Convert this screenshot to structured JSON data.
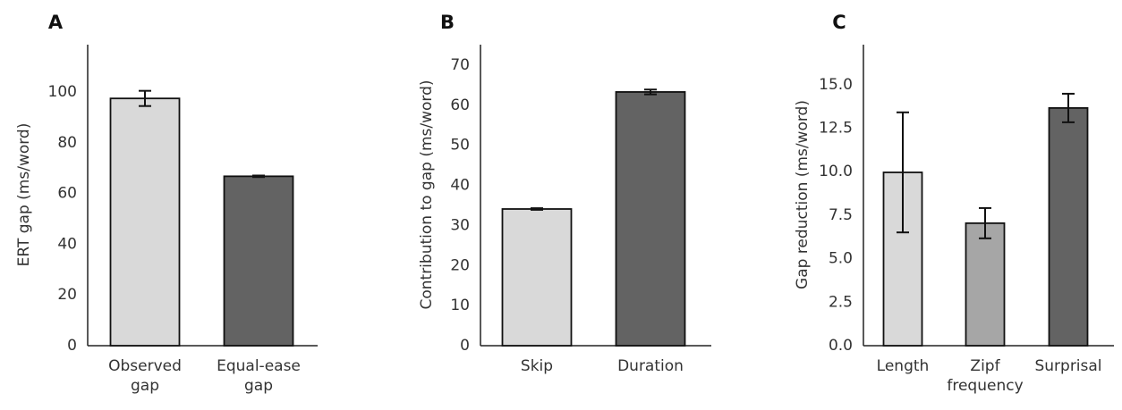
{
  "chart_data": [
    {
      "type": "bar",
      "label": "A",
      "ylabel": "ERT gap (ms/word)",
      "categories": [
        "Observed gap",
        "Equal-ease gap"
      ],
      "values": [
        97.5,
        66.8
      ],
      "errors": [
        3.0,
        0.3
      ],
      "colors": [
        "#d9d9d9",
        "#636363"
      ],
      "ylim": [
        0,
        118.7
      ],
      "yticks": [
        0,
        20,
        40,
        60,
        80,
        100
      ],
      "grid": false
    },
    {
      "type": "bar",
      "label": "B",
      "ylabel": "Contribution to gap (ms/word)",
      "categories": [
        "Skip",
        "Duration"
      ],
      "values": [
        34.1,
        63.3
      ],
      "errors": [
        0.2,
        0.6
      ],
      "colors": [
        "#d9d9d9",
        "#636363"
      ],
      "ylim": [
        0,
        75.1
      ],
      "yticks": [
        0,
        10,
        20,
        30,
        40,
        50,
        60,
        70
      ],
      "grid": false
    },
    {
      "type": "bar",
      "label": "C",
      "ylabel": "Gap reduction (ms/word)",
      "categories": [
        "Length",
        "Zipf frequency",
        "Surprisal"
      ],
      "values": [
        9.96,
        7.04,
        13.66
      ],
      "errors": [
        3.45,
        0.87,
        0.82
      ],
      "colors": [
        "#d9d9d9",
        "#a6a6a6",
        "#636363"
      ],
      "ylim": [
        0,
        17.3
      ],
      "yticks": [
        {
          "value": 0,
          "label": "0.0"
        },
        {
          "value": 2.5,
          "label": "2.5"
        },
        {
          "value": 5,
          "label": "5.0"
        },
        {
          "value": 7.5,
          "label": "7.5"
        },
        {
          "value": 10,
          "label": "10.0"
        },
        {
          "value": 12.5,
          "label": "12.5"
        },
        {
          "value": 15,
          "label": "15.0"
        }
      ],
      "grid": false
    }
  ]
}
